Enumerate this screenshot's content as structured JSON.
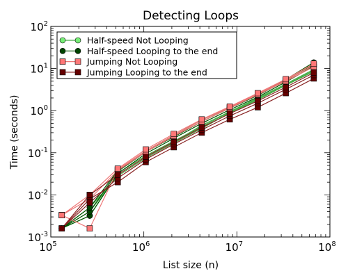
{
  "chart_data": {
    "type": "line",
    "title": "Detecting Loops",
    "xlabel": "List size (n)",
    "ylabel": "Time (seconds)",
    "xscale": "log",
    "yscale": "log",
    "xlim": [
      100000,
      100000000
    ],
    "ylim": [
      0.001,
      100
    ],
    "x_ticks": [
      {
        "base": "10",
        "exp": "5",
        "value": 100000
      },
      {
        "base": "10",
        "exp": "6",
        "value": 1000000
      },
      {
        "base": "10",
        "exp": "7",
        "value": 10000000
      },
      {
        "base": "10",
        "exp": "8",
        "value": 100000000
      }
    ],
    "y_ticks": [
      {
        "base": "10",
        "exp": "-3",
        "value": 0.001
      },
      {
        "base": "10",
        "exp": "-2",
        "value": 0.01
      },
      {
        "base": "10",
        "exp": "-1",
        "value": 0.1
      },
      {
        "base": "10",
        "exp": "0",
        "value": 1
      },
      {
        "base": "10",
        "exp": "1",
        "value": 10
      },
      {
        "base": "10",
        "exp": "2",
        "value": 100
      }
    ],
    "grid": false,
    "legend_position": "top-left",
    "x": [
      131072,
      262144,
      524288,
      1048576,
      2097152,
      4194304,
      8388608,
      16777216,
      33554432,
      67108864
    ],
    "series": [
      {
        "name": "Half-speed Not Looping",
        "marker": "circle",
        "line_color": "#44aa44",
        "marker_color": "#77ee77",
        "runs": [
          [
            0.0016,
            0.0032,
            0.033,
            0.085,
            0.19,
            0.42,
            0.92,
            1.9,
            4.1,
            9.0
          ],
          [
            0.0016,
            0.005,
            0.028,
            0.075,
            0.17,
            0.38,
            0.88,
            1.8,
            4.0,
            8.5
          ],
          [
            0.0016,
            0.004,
            0.03,
            0.08,
            0.18,
            0.45,
            0.95,
            2.0,
            4.3,
            9.5
          ]
        ]
      },
      {
        "name": "Half-speed Looping to the end",
        "marker": "circle",
        "line_color": "#005500",
        "marker_color": "#004400",
        "runs": [
          [
            0.0016,
            0.0032,
            0.032,
            0.095,
            0.22,
            0.5,
            1.05,
            2.1,
            4.8,
            11.5
          ],
          [
            0.0016,
            0.004,
            0.036,
            0.105,
            0.24,
            0.55,
            1.15,
            2.3,
            5.2,
            12.5
          ],
          [
            0.0016,
            0.005,
            0.038,
            0.11,
            0.26,
            0.6,
            1.2,
            2.4,
            5.5,
            14.0
          ]
        ]
      },
      {
        "name": "Jumping Not Looping",
        "marker": "square",
        "line_color": "#ee7777",
        "marker_color": "#ff7777",
        "runs": [
          [
            0.0033,
            0.0016,
            0.04,
            0.11,
            0.26,
            0.6,
            1.2,
            2.5,
            5.3,
            12.0
          ],
          [
            0.0033,
            0.008,
            0.038,
            0.105,
            0.25,
            0.55,
            1.15,
            2.4,
            5.0,
            11.0
          ],
          [
            0.0033,
            0.01,
            0.042,
            0.12,
            0.28,
            0.62,
            1.25,
            2.6,
            5.6,
            13.0
          ]
        ]
      },
      {
        "name": "Jumping Looping to the end",
        "marker": "square",
        "line_color": "#882222",
        "marker_color": "#660000",
        "runs": [
          [
            0.0016,
            0.008,
            0.02,
            0.06,
            0.135,
            0.3,
            0.62,
            1.2,
            2.6,
            5.8
          ],
          [
            0.0016,
            0.0065,
            0.025,
            0.07,
            0.16,
            0.35,
            0.75,
            1.5,
            3.2,
            7.0
          ],
          [
            0.0016,
            0.01,
            0.03,
            0.08,
            0.18,
            0.4,
            0.85,
            1.7,
            3.6,
            8.0
          ]
        ]
      }
    ]
  }
}
